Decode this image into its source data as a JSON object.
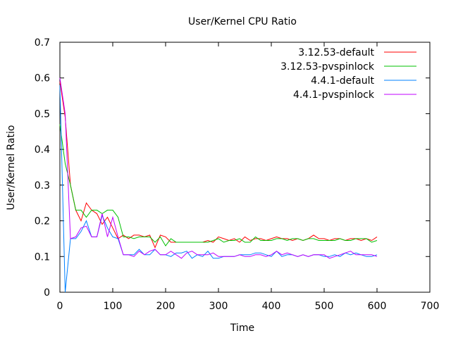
{
  "chart_data": {
    "type": "line",
    "title": "User/Kernel CPU Ratio",
    "xlabel": "Time",
    "ylabel": "User/Kernel Ratio",
    "xlim": [
      0,
      700
    ],
    "ylim": [
      0,
      0.7
    ],
    "xticks": [
      0,
      100,
      200,
      300,
      400,
      500,
      600,
      700
    ],
    "yticks": [
      0,
      0.1,
      0.2,
      0.3,
      0.4,
      0.5,
      0.6,
      0.7
    ],
    "grid": false,
    "legend_position": "top-right",
    "x": [
      0,
      10,
      20,
      30,
      40,
      50,
      60,
      70,
      80,
      90,
      100,
      110,
      120,
      130,
      140,
      150,
      160,
      170,
      180,
      190,
      200,
      210,
      220,
      230,
      240,
      250,
      260,
      270,
      280,
      290,
      300,
      310,
      320,
      330,
      340,
      350,
      360,
      370,
      380,
      390,
      400,
      410,
      420,
      430,
      440,
      450,
      460,
      470,
      480,
      490,
      500,
      510,
      520,
      530,
      540,
      550,
      560,
      570,
      580,
      590,
      600
    ],
    "series": [
      {
        "name": "3.12.53-default",
        "color": "#ff0000",
        "values": [
          0.59,
          0.49,
          0.3,
          0.23,
          0.2,
          0.25,
          0.23,
          0.22,
          0.19,
          0.21,
          0.18,
          0.15,
          0.16,
          0.15,
          0.16,
          0.16,
          0.155,
          0.16,
          0.125,
          0.16,
          0.155,
          0.14,
          0.14,
          0.14,
          0.14,
          0.14,
          0.14,
          0.14,
          0.145,
          0.14,
          0.155,
          0.15,
          0.145,
          0.15,
          0.14,
          0.155,
          0.145,
          0.15,
          0.15,
          0.145,
          0.15,
          0.155,
          0.15,
          0.15,
          0.145,
          0.15,
          0.145,
          0.15,
          0.16,
          0.15,
          0.15,
          0.145,
          0.15,
          0.15,
          0.145,
          0.15,
          0.15,
          0.145,
          0.15,
          0.145,
          0.155
        ]
      },
      {
        "name": "3.12.53-pvspinlock",
        "color": "#00c000",
        "values": [
          0.47,
          0.36,
          0.3,
          0.23,
          0.23,
          0.21,
          0.23,
          0.23,
          0.22,
          0.23,
          0.23,
          0.21,
          0.155,
          0.155,
          0.15,
          0.155,
          0.155,
          0.155,
          0.14,
          0.155,
          0.13,
          0.15,
          0.14,
          0.14,
          0.14,
          0.14,
          0.14,
          0.14,
          0.14,
          0.145,
          0.15,
          0.14,
          0.145,
          0.145,
          0.15,
          0.14,
          0.14,
          0.155,
          0.145,
          0.145,
          0.145,
          0.15,
          0.15,
          0.145,
          0.15,
          0.15,
          0.145,
          0.15,
          0.15,
          0.145,
          0.145,
          0.145,
          0.145,
          0.15,
          0.145,
          0.145,
          0.15,
          0.15,
          0.15,
          0.14,
          0.145
        ]
      },
      {
        "name": "4.4.1-default",
        "color": "#0080ff",
        "values": [
          0.58,
          0.0,
          0.15,
          0.15,
          0.17,
          0.2,
          0.155,
          0.155,
          0.215,
          0.18,
          0.155,
          0.15,
          0.105,
          0.105,
          0.105,
          0.12,
          0.105,
          0.105,
          0.12,
          0.105,
          0.105,
          0.1,
          0.11,
          0.11,
          0.115,
          0.095,
          0.105,
          0.1,
          0.115,
          0.095,
          0.095,
          0.1,
          0.1,
          0.1,
          0.105,
          0.105,
          0.105,
          0.11,
          0.11,
          0.105,
          0.1,
          0.115,
          0.1,
          0.105,
          0.105,
          0.1,
          0.105,
          0.1,
          0.105,
          0.105,
          0.1,
          0.1,
          0.105,
          0.1,
          0.11,
          0.105,
          0.11,
          0.105,
          0.1,
          0.1,
          0.105
        ]
      },
      {
        "name": "4.4.1-pvspinlock",
        "color": "#c000ff",
        "values": [
          0.6,
          0.5,
          0.15,
          0.155,
          0.18,
          0.185,
          0.155,
          0.155,
          0.22,
          0.155,
          0.21,
          0.155,
          0.105,
          0.105,
          0.1,
          0.115,
          0.105,
          0.115,
          0.12,
          0.105,
          0.105,
          0.115,
          0.105,
          0.095,
          0.11,
          0.115,
          0.105,
          0.105,
          0.105,
          0.11,
          0.1,
          0.1,
          0.1,
          0.1,
          0.105,
          0.1,
          0.1,
          0.105,
          0.105,
          0.1,
          0.105,
          0.115,
          0.105,
          0.11,
          0.105,
          0.1,
          0.105,
          0.1,
          0.105,
          0.105,
          0.105,
          0.095,
          0.1,
          0.105,
          0.11,
          0.115,
          0.105,
          0.105,
          0.105,
          0.105,
          0.1
        ]
      }
    ]
  }
}
